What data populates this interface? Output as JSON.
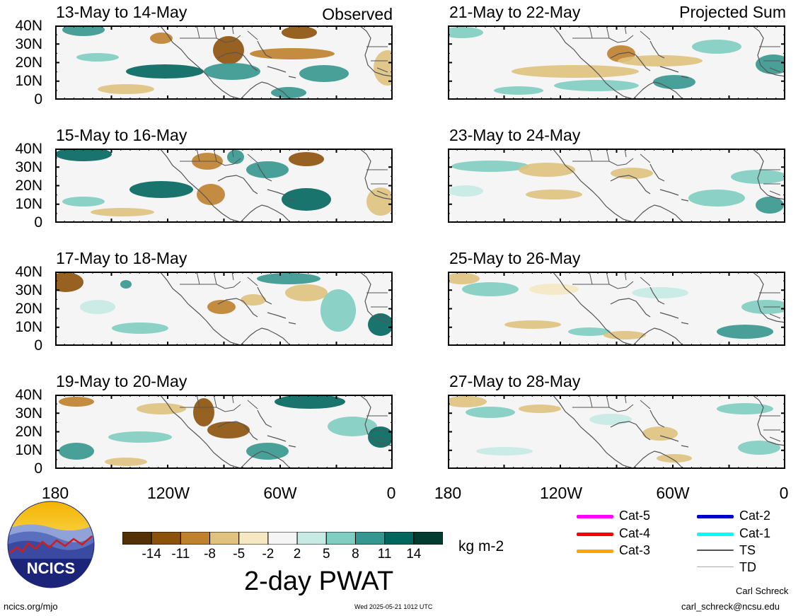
{
  "panels": {
    "left": [
      {
        "title": "13-May to 14-May",
        "tag": "Observed"
      },
      {
        "title": "15-May to 16-May",
        "tag": ""
      },
      {
        "title": "17-May to 18-May",
        "tag": ""
      },
      {
        "title": "19-May to 20-May",
        "tag": ""
      }
    ],
    "right": [
      {
        "title": "21-May to 22-May",
        "tag": "Projected Sum"
      },
      {
        "title": "23-May to 24-May",
        "tag": ""
      },
      {
        "title": "25-May to 26-May",
        "tag": ""
      },
      {
        "title": "27-May to 28-May",
        "tag": ""
      }
    ]
  },
  "lat_labels": [
    "40N",
    "30N",
    "20N",
    "10N",
    "0"
  ],
  "lon_labels": [
    "180",
    "120W",
    "60W",
    "0"
  ],
  "colorbar": {
    "ticks": [
      "-14",
      "-11",
      "-8",
      "-5",
      "-2",
      "2",
      "5",
      "8",
      "11",
      "14"
    ],
    "colors": [
      "#543005",
      "#8c510a",
      "#bf812d",
      "#dfc27d",
      "#f6e8c3",
      "#f5f5f5",
      "#c7eae5",
      "#80cdc1",
      "#35978f",
      "#01665e",
      "#003c30"
    ],
    "units": "kg m-2",
    "title": "2-day PWAT"
  },
  "legend": [
    {
      "label": "Cat-5",
      "color": "#ff00ff"
    },
    {
      "label": "Cat-4",
      "color": "#ff0000"
    },
    {
      "label": "Cat-3",
      "color": "#ffa500"
    },
    {
      "label": "Cat-2",
      "color": "#0000cd"
    },
    {
      "label": "Cat-1",
      "color": "#00ffff"
    },
    {
      "label": "TS",
      "color": "#555555"
    },
    {
      "label": "TD",
      "color": "#aaaaaa"
    }
  ],
  "logo": {
    "text": "NCICS"
  },
  "footer": {
    "url": "ncics.org/mjo",
    "timestamp": "Wed 2025-05-21 1012 UTC",
    "author": "Carl Schreck",
    "email": "carl_schreck@ncsu.edu"
  }
}
